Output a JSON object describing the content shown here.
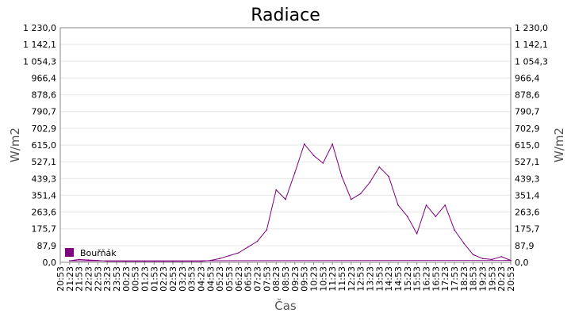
{
  "chart_data": {
    "type": "line",
    "title": "Radiace",
    "xlabel": "Čas",
    "ylabel_left": "W/m2",
    "ylabel_right": "W/m2",
    "ylim": [
      0,
      1230
    ],
    "y_ticks": [
      "0,0",
      "87,9",
      "175,7",
      "263,6",
      "351,4",
      "439,3",
      "527,1",
      "615,0",
      "702,9",
      "790,7",
      "878,6",
      "966,4",
      "1 054,3",
      "1 142,1",
      "1 230,0"
    ],
    "x_ticks": [
      "20:53",
      "21:23",
      "21:53",
      "22:23",
      "22:53",
      "23:23",
      "23:53",
      "00:23",
      "00:53",
      "01:23",
      "01:53",
      "02:23",
      "02:53",
      "03:23",
      "03:53",
      "04:23",
      "04:53",
      "05:23",
      "05:53",
      "06:23",
      "06:53",
      "07:23",
      "07:53",
      "08:23",
      "08:53",
      "09:23",
      "09:53",
      "10:23",
      "10:53",
      "11:23",
      "11:53",
      "12:23",
      "12:53",
      "13:23",
      "13:53",
      "14:23",
      "14:53",
      "15:23",
      "15:53",
      "16:23",
      "16:53",
      "17:23",
      "17:53",
      "18:23",
      "18:53",
      "19:23",
      "19:53",
      "20:23",
      "20:53"
    ],
    "grid": true,
    "legend": "bottom-left",
    "series": [
      {
        "name": "Bouřňák",
        "color": "#800080",
        "x": [
          "20:53",
          "21:23",
          "21:53",
          "22:23",
          "22:53",
          "23:23",
          "23:53",
          "00:23",
          "00:53",
          "01:23",
          "01:53",
          "02:23",
          "02:53",
          "03:23",
          "03:53",
          "04:23",
          "04:53",
          "05:23",
          "05:53",
          "06:23",
          "06:53",
          "07:23",
          "07:53",
          "08:23",
          "08:53",
          "09:23",
          "09:53",
          "10:23",
          "10:53",
          "11:23",
          "11:53",
          "12:23",
          "12:53",
          "13:23",
          "13:53",
          "14:23",
          "14:53",
          "15:23",
          "15:53",
          "16:23",
          "16:53",
          "17:23",
          "17:53",
          "18:23",
          "18:53",
          "19:23",
          "19:53",
          "20:23",
          "20:53"
        ],
        "values": [
          10,
          8,
          15,
          12,
          10,
          6,
          6,
          5,
          5,
          5,
          5,
          5,
          5,
          5,
          5,
          5,
          10,
          20,
          35,
          50,
          80,
          110,
          170,
          380,
          330,
          470,
          620,
          560,
          520,
          620,
          450,
          330,
          360,
          420,
          500,
          450,
          300,
          240,
          150,
          300,
          240,
          300,
          170,
          100,
          40,
          20,
          15,
          30,
          10
        ]
      }
    ]
  }
}
